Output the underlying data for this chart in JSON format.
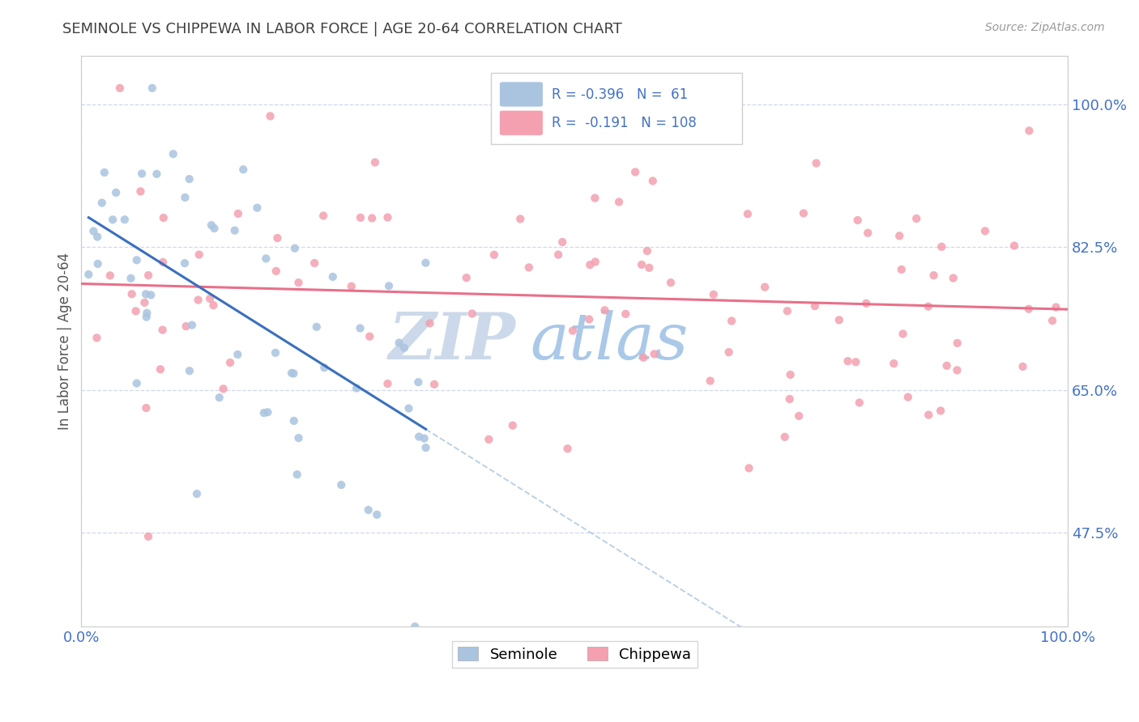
{
  "title": "SEMINOLE VS CHIPPEWA IN LABOR FORCE | AGE 20-64 CORRELATION CHART",
  "source_text": "Source: ZipAtlas.com",
  "ylabel": "In Labor Force | Age 20-64",
  "xlim": [
    0.0,
    1.0
  ],
  "ylim": [
    0.36,
    1.06
  ],
  "x_tick_labels": [
    "0.0%",
    "100.0%"
  ],
  "y_ticks": [
    0.475,
    0.65,
    0.825,
    1.0
  ],
  "y_tick_labels": [
    "47.5%",
    "65.0%",
    "82.5%",
    "100.0%"
  ],
  "seminole_color": "#aac4e0",
  "chippewa_color": "#f4a0b0",
  "seminole_line_color": "#3a6fbf",
  "chippewa_line_color": "#e8708a",
  "dashed_line_color": "#aac4e0",
  "watermark_zip": "ZIP",
  "watermark_atlas": "atlas",
  "watermark_color_zip": "#ccd9ea",
  "watermark_color_atlas": "#aac8e8",
  "title_color": "#404040",
  "axis_label_color": "#555555",
  "tick_color": "#4472c4",
  "grid_color": "#d0d8ec",
  "legend_color": "#4472c4",
  "seminole_R": "R = -0.396",
  "seminole_N": "N =  61",
  "chippewa_R": "R =  -0.191",
  "chippewa_N": "N = 108"
}
